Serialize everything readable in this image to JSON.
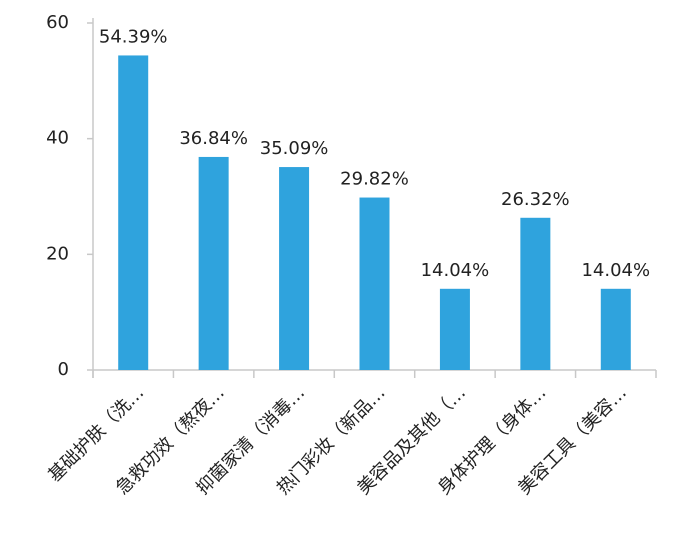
{
  "chart_data": {
    "type": "bar",
    "categories": [
      "基础护肤（洗…",
      "急救功效（熬夜…",
      "抑菌家清（消毒…",
      "热门彩妆（新品…",
      "美容品及其他（…",
      "身体护理（身体…",
      "美容工具（美容…"
    ],
    "values": [
      54.39,
      36.84,
      35.09,
      29.82,
      14.04,
      26.32,
      14.04
    ],
    "value_labels": [
      "54.39%",
      "36.84%",
      "35.09%",
      "29.82%",
      "14.04%",
      "26.32%",
      "14.04%"
    ],
    "color": "#2fa3dd",
    "ylim": [
      0,
      60
    ],
    "yticks": [
      0,
      20,
      40,
      60
    ],
    "grid": false
  }
}
